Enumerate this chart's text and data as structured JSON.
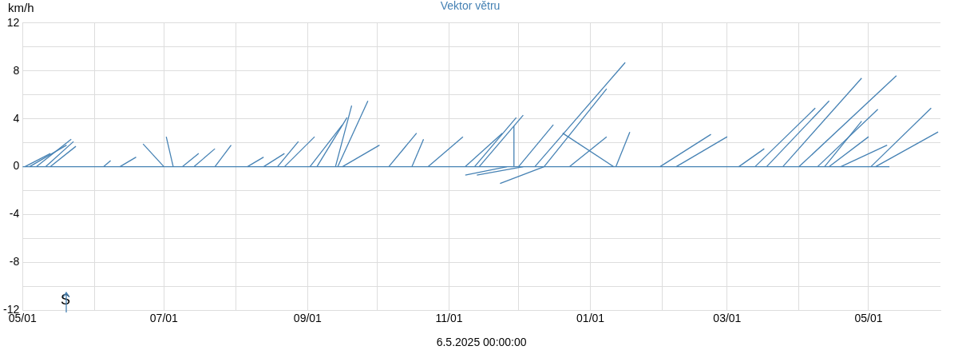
{
  "chart_data": {
    "type": "line",
    "title": "Vektor větru",
    "ylabel": "km/h",
    "xlabel": "6.5.2025 00:00:00",
    "annotations": [
      "S"
    ],
    "xlim": [
      "2024-05-01",
      "2025-06-01"
    ],
    "xticks": [
      {
        "value": "2024-05-01",
        "label": "05/01"
      },
      {
        "value": "2024-06-01",
        "label": null
      },
      {
        "value": "2024-07-01",
        "label": "07/01"
      },
      {
        "value": "2024-08-01",
        "label": null
      },
      {
        "value": "2024-09-01",
        "label": "09/01"
      },
      {
        "value": "2024-10-01",
        "label": null
      },
      {
        "value": "2024-11-01",
        "label": "11/01"
      },
      {
        "value": "2024-12-01",
        "label": null
      },
      {
        "value": "2025-01-01",
        "label": "01/01"
      },
      {
        "value": "2025-02-01",
        "label": null
      },
      {
        "value": "2025-03-01",
        "label": "03/01"
      },
      {
        "value": "2025-04-01",
        "label": null
      },
      {
        "value": "2025-05-01",
        "label": "05/01"
      }
    ],
    "ylim": [
      -12,
      12
    ],
    "yticks": [
      -12,
      {
        "value": -10,
        "label": null
      },
      -8,
      {
        "value": -6,
        "label": null
      },
      -4,
      {
        "value": -2,
        "label": null
      },
      0,
      {
        "value": 2,
        "label": null
      },
      4,
      {
        "value": 6,
        "label": null
      },
      8,
      {
        "value": 10,
        "label": null
      },
      12
    ],
    "grid": true,
    "legend": false,
    "marker": "none",
    "line_style": "solid",
    "series": [
      {
        "color": "#4682b4",
        "x": [
          "2024-05-01",
          "2025-05-10"
        ],
        "values": [
          0,
          0
        ]
      },
      {
        "color": "#4682b4",
        "x": [
          "2024-05-02",
          "2024-05-13"
        ],
        "values": [
          0,
          1.1
        ]
      },
      {
        "color": "#4682b4",
        "x": [
          "2024-05-04",
          "2024-05-20"
        ],
        "values": [
          0,
          1.8
        ]
      },
      {
        "color": "#4682b4",
        "x": [
          "2024-05-07",
          "2024-05-22"
        ],
        "values": [
          0,
          2.3
        ]
      },
      {
        "color": "#4682b4",
        "x": [
          "2024-05-11",
          "2024-05-23"
        ],
        "values": [
          0,
          2.1
        ]
      },
      {
        "color": "#4682b4",
        "x": [
          "2024-05-13",
          "2024-05-24"
        ],
        "values": [
          0,
          1.7
        ]
      },
      {
        "color": "#4682b4",
        "x": [
          "2024-06-05",
          "2024-06-08"
        ],
        "values": [
          0,
          0.5
        ]
      },
      {
        "color": "#4682b4",
        "x": [
          "2024-06-12",
          "2024-06-19"
        ],
        "values": [
          0,
          0.8
        ]
      },
      {
        "color": "#4682b4",
        "x": [
          "2024-07-01",
          "2024-06-22"
        ],
        "values": [
          0,
          1.9
        ]
      },
      {
        "color": "#4682b4",
        "x": [
          "2024-07-05",
          "2024-07-02"
        ],
        "values": [
          0,
          2.5
        ]
      },
      {
        "color": "#4682b4",
        "x": [
          "2024-07-09",
          "2024-07-16"
        ],
        "values": [
          0,
          1.1
        ]
      },
      {
        "color": "#4682b4",
        "x": [
          "2024-07-14",
          "2024-07-23"
        ],
        "values": [
          0,
          1.5
        ]
      },
      {
        "color": "#4682b4",
        "x": [
          "2024-07-23",
          "2024-07-30"
        ],
        "values": [
          0,
          1.8
        ]
      },
      {
        "color": "#4682b4",
        "x": [
          "2024-08-06",
          "2024-08-13"
        ],
        "values": [
          0,
          0.8
        ]
      },
      {
        "color": "#4682b4",
        "x": [
          "2024-08-13",
          "2024-08-22"
        ],
        "values": [
          0,
          1.1
        ]
      },
      {
        "color": "#4682b4",
        "x": [
          "2024-08-19",
          "2024-08-28"
        ],
        "values": [
          0,
          2.1
        ]
      },
      {
        "color": "#4682b4",
        "x": [
          "2024-08-22",
          "2024-09-04"
        ],
        "values": [
          0,
          2.5
        ]
      },
      {
        "color": "#4682b4",
        "x": [
          "2024-09-02",
          "2024-09-16"
        ],
        "values": [
          0,
          3.5
        ]
      },
      {
        "color": "#4682b4",
        "x": [
          "2024-09-05",
          "2024-09-18"
        ],
        "values": [
          0,
          4.1
        ]
      },
      {
        "color": "#4682b4",
        "x": [
          "2024-09-13",
          "2024-09-20"
        ],
        "values": [
          0,
          5.1
        ]
      },
      {
        "color": "#4682b4",
        "x": [
          "2024-09-14",
          "2024-09-27"
        ],
        "values": [
          0,
          5.5
        ]
      },
      {
        "color": "#4682b4",
        "x": [
          "2024-09-16",
          "2024-10-02"
        ],
        "values": [
          0,
          1.8
        ]
      },
      {
        "color": "#4682b4",
        "x": [
          "2024-10-06",
          "2024-10-18"
        ],
        "values": [
          0,
          2.8
        ]
      },
      {
        "color": "#4682b4",
        "x": [
          "2024-10-16",
          "2024-10-21"
        ],
        "values": [
          0,
          2.3
        ]
      },
      {
        "color": "#4682b4",
        "x": [
          "2024-10-23",
          "2024-11-07"
        ],
        "values": [
          0,
          2.5
        ]
      },
      {
        "color": "#4682b4",
        "x": [
          "2024-11-08",
          "2024-11-24"
        ],
        "values": [
          0,
          2.8
        ]
      },
      {
        "color": "#4682b4",
        "x": [
          "2024-11-12",
          "2024-11-30"
        ],
        "values": [
          0,
          4.1
        ]
      },
      {
        "color": "#4682b4",
        "x": [
          "2024-11-14",
          "2024-12-03"
        ],
        "values": [
          0,
          4.3
        ]
      },
      {
        "color": "#4682b4",
        "x": [
          "2024-11-26",
          "2024-11-08"
        ],
        "values": [
          0,
          -0.7
        ]
      },
      {
        "color": "#4682b4",
        "x": [
          "2024-12-03",
          "2024-11-13"
        ],
        "values": [
          0,
          -0.7
        ]
      },
      {
        "color": "#4682b4",
        "x": [
          "2024-12-12",
          "2024-11-23"
        ],
        "values": [
          0,
          -1.4
        ]
      },
      {
        "color": "#4682b4",
        "x": [
          "2024-11-29",
          "2024-11-29"
        ],
        "values": [
          0,
          3.4
        ]
      },
      {
        "color": "#4682b4",
        "x": [
          "2024-12-01",
          "2024-12-16"
        ],
        "values": [
          0,
          3.5
        ]
      },
      {
        "color": "#4682b4",
        "x": [
          "2024-12-08",
          "2025-01-16"
        ],
        "values": [
          0,
          8.7
        ]
      },
      {
        "color": "#4682b4",
        "x": [
          "2024-12-12",
          "2025-01-08"
        ],
        "values": [
          0,
          6.5
        ]
      },
      {
        "color": "#4682b4",
        "x": [
          "2025-01-11",
          "2024-12-20"
        ],
        "values": [
          0,
          2.8
        ]
      },
      {
        "color": "#4682b4",
        "x": [
          "2024-12-23",
          "2025-01-08"
        ],
        "values": [
          0,
          2.5
        ]
      },
      {
        "color": "#4682b4",
        "x": [
          "2025-01-12",
          "2025-01-18"
        ],
        "values": [
          0,
          2.9
        ]
      },
      {
        "color": "#4682b4",
        "x": [
          "2025-01-31",
          "2025-02-22"
        ],
        "values": [
          0,
          2.7
        ]
      },
      {
        "color": "#4682b4",
        "x": [
          "2025-02-07",
          "2025-03-01"
        ],
        "values": [
          0,
          2.5
        ]
      },
      {
        "color": "#4682b4",
        "x": [
          "2025-03-06",
          "2025-03-17"
        ],
        "values": [
          0,
          1.5
        ]
      },
      {
        "color": "#4682b4",
        "x": [
          "2025-03-13",
          "2025-04-08"
        ],
        "values": [
          0,
          4.9
        ]
      },
      {
        "color": "#4682b4",
        "x": [
          "2025-03-18",
          "2025-04-14"
        ],
        "values": [
          0,
          5.5
        ]
      },
      {
        "color": "#4682b4",
        "x": [
          "2025-03-25",
          "2025-04-28"
        ],
        "values": [
          0,
          7.4
        ]
      },
      {
        "color": "#4682b4",
        "x": [
          "2025-04-01",
          "2025-05-13"
        ],
        "values": [
          0,
          7.6
        ]
      },
      {
        "color": "#4682b4",
        "x": [
          "2025-04-09",
          "2025-05-05"
        ],
        "values": [
          0,
          4.8
        ]
      },
      {
        "color": "#4682b4",
        "x": [
          "2025-04-12",
          "2025-04-28"
        ],
        "values": [
          0,
          3.8
        ]
      },
      {
        "color": "#4682b4",
        "x": [
          "2025-04-14",
          "2025-05-01"
        ],
        "values": [
          0,
          2.5
        ]
      },
      {
        "color": "#4682b4",
        "x": [
          "2025-04-19",
          "2025-05-09"
        ],
        "values": [
          0,
          1.8
        ]
      },
      {
        "color": "#4682b4",
        "x": [
          "2025-05-02",
          "2025-05-28"
        ],
        "values": [
          0,
          4.9
        ]
      },
      {
        "color": "#4682b4",
        "x": [
          "2025-05-04",
          "2025-05-31"
        ],
        "values": [
          0,
          2.9
        ]
      }
    ]
  }
}
